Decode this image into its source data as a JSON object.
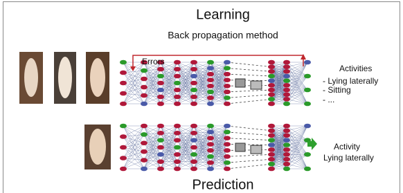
{
  "header": {
    "title": "Learning",
    "subtitle": "Back propagation method",
    "errors_label": "Errors"
  },
  "learning": {
    "heading": "Activities",
    "items": [
      "- Lying laterally",
      "- Sitting",
      "- ..."
    ]
  },
  "prediction": {
    "heading": "Activity",
    "result": "Lying laterally"
  },
  "footer": {
    "title": "Prediction"
  }
}
